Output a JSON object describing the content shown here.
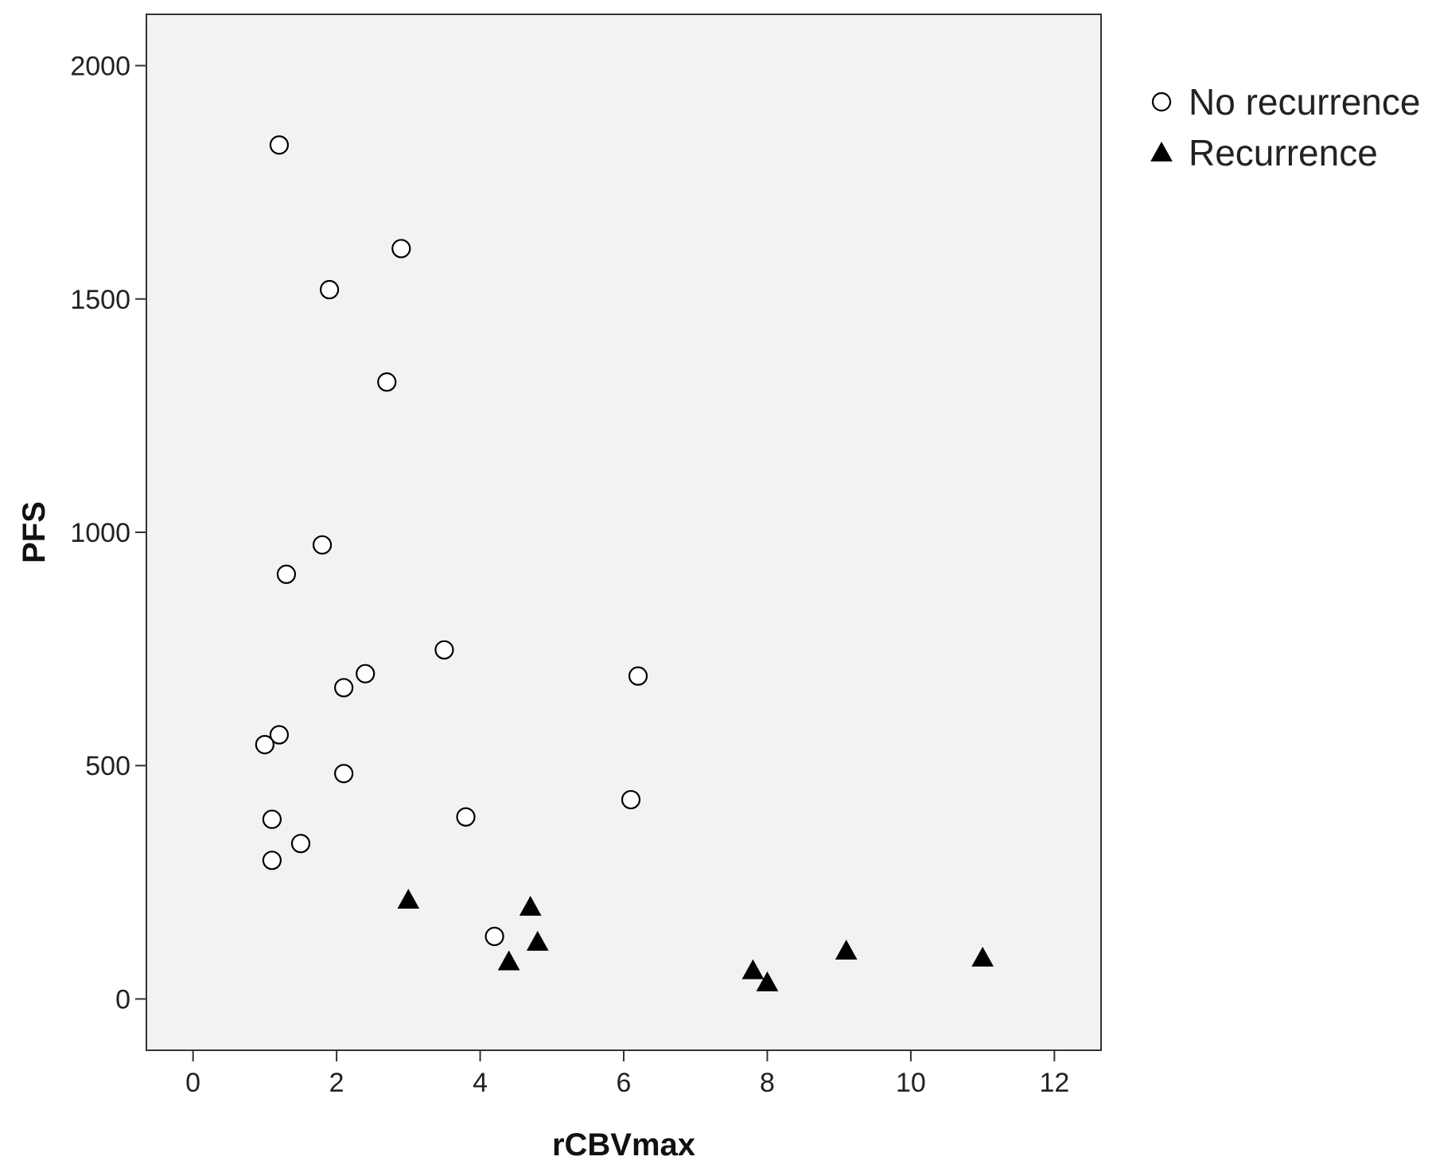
{
  "chart_data": {
    "type": "scatter",
    "xlabel": "rCBVmax",
    "ylabel": "PFS",
    "xlim": [
      -0.65,
      12.65
    ],
    "ylim": [
      -110,
      2110
    ],
    "x_ticks": [
      0,
      2,
      4,
      6,
      8,
      10,
      12
    ],
    "y_ticks": [
      0,
      500,
      1000,
      1500,
      2000
    ],
    "grid": false,
    "legend_position": "right-top",
    "plot_background": "#f2f2f2",
    "series": [
      {
        "name": "No recurrence",
        "marker": "open-circle",
        "color": "#000000",
        "points": [
          {
            "x": 1.2,
            "y": 1830
          },
          {
            "x": 2.9,
            "y": 1608
          },
          {
            "x": 1.9,
            "y": 1520
          },
          {
            "x": 2.7,
            "y": 1322
          },
          {
            "x": 1.8,
            "y": 973
          },
          {
            "x": 1.3,
            "y": 910
          },
          {
            "x": 3.5,
            "y": 748
          },
          {
            "x": 2.4,
            "y": 697
          },
          {
            "x": 2.1,
            "y": 667
          },
          {
            "x": 6.2,
            "y": 692
          },
          {
            "x": 1.2,
            "y": 566
          },
          {
            "x": 1.0,
            "y": 545
          },
          {
            "x": 2.1,
            "y": 483
          },
          {
            "x": 6.1,
            "y": 427
          },
          {
            "x": 3.8,
            "y": 390
          },
          {
            "x": 1.1,
            "y": 385
          },
          {
            "x": 1.5,
            "y": 333
          },
          {
            "x": 1.1,
            "y": 297
          },
          {
            "x": 4.2,
            "y": 134
          }
        ]
      },
      {
        "name": "Recurrence",
        "marker": "filled-triangle",
        "color": "#000000",
        "points": [
          {
            "x": 3.0,
            "y": 212
          },
          {
            "x": 4.7,
            "y": 197
          },
          {
            "x": 4.8,
            "y": 122
          },
          {
            "x": 4.4,
            "y": 80
          },
          {
            "x": 9.1,
            "y": 103
          },
          {
            "x": 11.0,
            "y": 88
          },
          {
            "x": 7.8,
            "y": 61
          },
          {
            "x": 8.0,
            "y": 35
          }
        ]
      }
    ]
  }
}
